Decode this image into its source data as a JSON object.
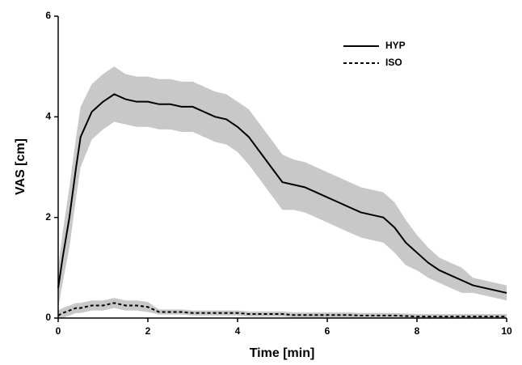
{
  "chart_data": {
    "type": "line",
    "xlabel": "Time [min]",
    "ylabel": "VAS [cm]",
    "x": [
      0,
      0.1,
      0.25,
      0.4,
      0.5,
      0.75,
      1,
      1.25,
      1.5,
      1.75,
      2,
      2.25,
      2.5,
      2.75,
      3,
      3.25,
      3.5,
      3.75,
      4,
      4.25,
      4.5,
      4.75,
      5,
      5.25,
      5.5,
      5.75,
      6,
      6.25,
      6.5,
      6.75,
      7,
      7.25,
      7.5,
      7.75,
      8,
      8.25,
      8.5,
      8.75,
      9,
      9.25,
      9.5,
      9.75,
      10
    ],
    "series": [
      {
        "name": "HYP",
        "color": "#000000",
        "linestyle": "solid",
        "band_color": "#c8c8c8",
        "values": [
          0.6,
          1.2,
          2.0,
          3.0,
          3.6,
          4.1,
          4.3,
          4.45,
          4.35,
          4.3,
          4.3,
          4.25,
          4.25,
          4.2,
          4.2,
          4.1,
          4.0,
          3.95,
          3.8,
          3.6,
          3.3,
          3.0,
          2.7,
          2.65,
          2.6,
          2.5,
          2.4,
          2.3,
          2.2,
          2.1,
          2.05,
          2.0,
          1.8,
          1.5,
          1.3,
          1.1,
          0.95,
          0.85,
          0.75,
          0.65,
          0.6,
          0.55,
          0.5
        ],
        "upper": [
          1.0,
          1.7,
          2.6,
          3.6,
          4.2,
          4.65,
          4.85,
          5.0,
          4.85,
          4.8,
          4.8,
          4.75,
          4.75,
          4.7,
          4.7,
          4.6,
          4.5,
          4.45,
          4.3,
          4.15,
          3.85,
          3.55,
          3.25,
          3.15,
          3.1,
          3.0,
          2.9,
          2.8,
          2.7,
          2.6,
          2.55,
          2.5,
          2.3,
          1.95,
          1.65,
          1.4,
          1.2,
          1.1,
          1.0,
          0.8,
          0.75,
          0.7,
          0.65
        ],
        "lower": [
          0.2,
          0.7,
          1.4,
          2.4,
          3.0,
          3.55,
          3.75,
          3.9,
          3.85,
          3.8,
          3.8,
          3.75,
          3.75,
          3.7,
          3.7,
          3.6,
          3.5,
          3.45,
          3.3,
          3.05,
          2.75,
          2.45,
          2.15,
          2.15,
          2.1,
          2.0,
          1.9,
          1.8,
          1.7,
          1.6,
          1.55,
          1.5,
          1.3,
          1.05,
          0.95,
          0.8,
          0.7,
          0.6,
          0.5,
          0.5,
          0.45,
          0.4,
          0.35
        ]
      },
      {
        "name": "ISO",
        "color": "#000000",
        "linestyle": "dashed",
        "band_color": "#c8c8c8",
        "values": [
          0.05,
          0.1,
          0.15,
          0.2,
          0.2,
          0.25,
          0.25,
          0.3,
          0.25,
          0.25,
          0.22,
          0.12,
          0.12,
          0.12,
          0.1,
          0.1,
          0.1,
          0.1,
          0.1,
          0.08,
          0.08,
          0.08,
          0.08,
          0.06,
          0.06,
          0.06,
          0.06,
          0.06,
          0.06,
          0.05,
          0.05,
          0.05,
          0.05,
          0.04,
          0.03,
          0.03,
          0.03,
          0.03,
          0.03,
          0.03,
          0.03,
          0.03,
          0.03
        ],
        "upper": [
          0.15,
          0.2,
          0.25,
          0.3,
          0.3,
          0.35,
          0.35,
          0.4,
          0.35,
          0.35,
          0.32,
          0.17,
          0.17,
          0.17,
          0.15,
          0.15,
          0.15,
          0.15,
          0.15,
          0.13,
          0.13,
          0.13,
          0.13,
          0.11,
          0.11,
          0.11,
          0.11,
          0.11,
          0.11,
          0.1,
          0.1,
          0.1,
          0.1,
          0.09,
          0.08,
          0.08,
          0.08,
          0.08,
          0.08,
          0.08,
          0.08,
          0.08,
          0.08
        ],
        "lower": [
          0,
          0,
          0.05,
          0.1,
          0.1,
          0.15,
          0.15,
          0.2,
          0.15,
          0.15,
          0.12,
          0.07,
          0.07,
          0.07,
          0.05,
          0.05,
          0.05,
          0.05,
          0.05,
          0.03,
          0.03,
          0.03,
          0.03,
          0.01,
          0.01,
          0.01,
          0.01,
          0.01,
          0.01,
          0,
          0,
          0,
          0,
          0,
          0,
          0,
          0,
          0,
          0,
          0,
          0,
          0,
          0
        ]
      }
    ],
    "xlim": [
      0,
      10
    ],
    "xticks": [
      0,
      2,
      4,
      6,
      8,
      10
    ],
    "ylim": [
      0,
      6
    ],
    "yticks": [
      0,
      2,
      4,
      6
    ],
    "grid": false,
    "legend": "upper right"
  }
}
